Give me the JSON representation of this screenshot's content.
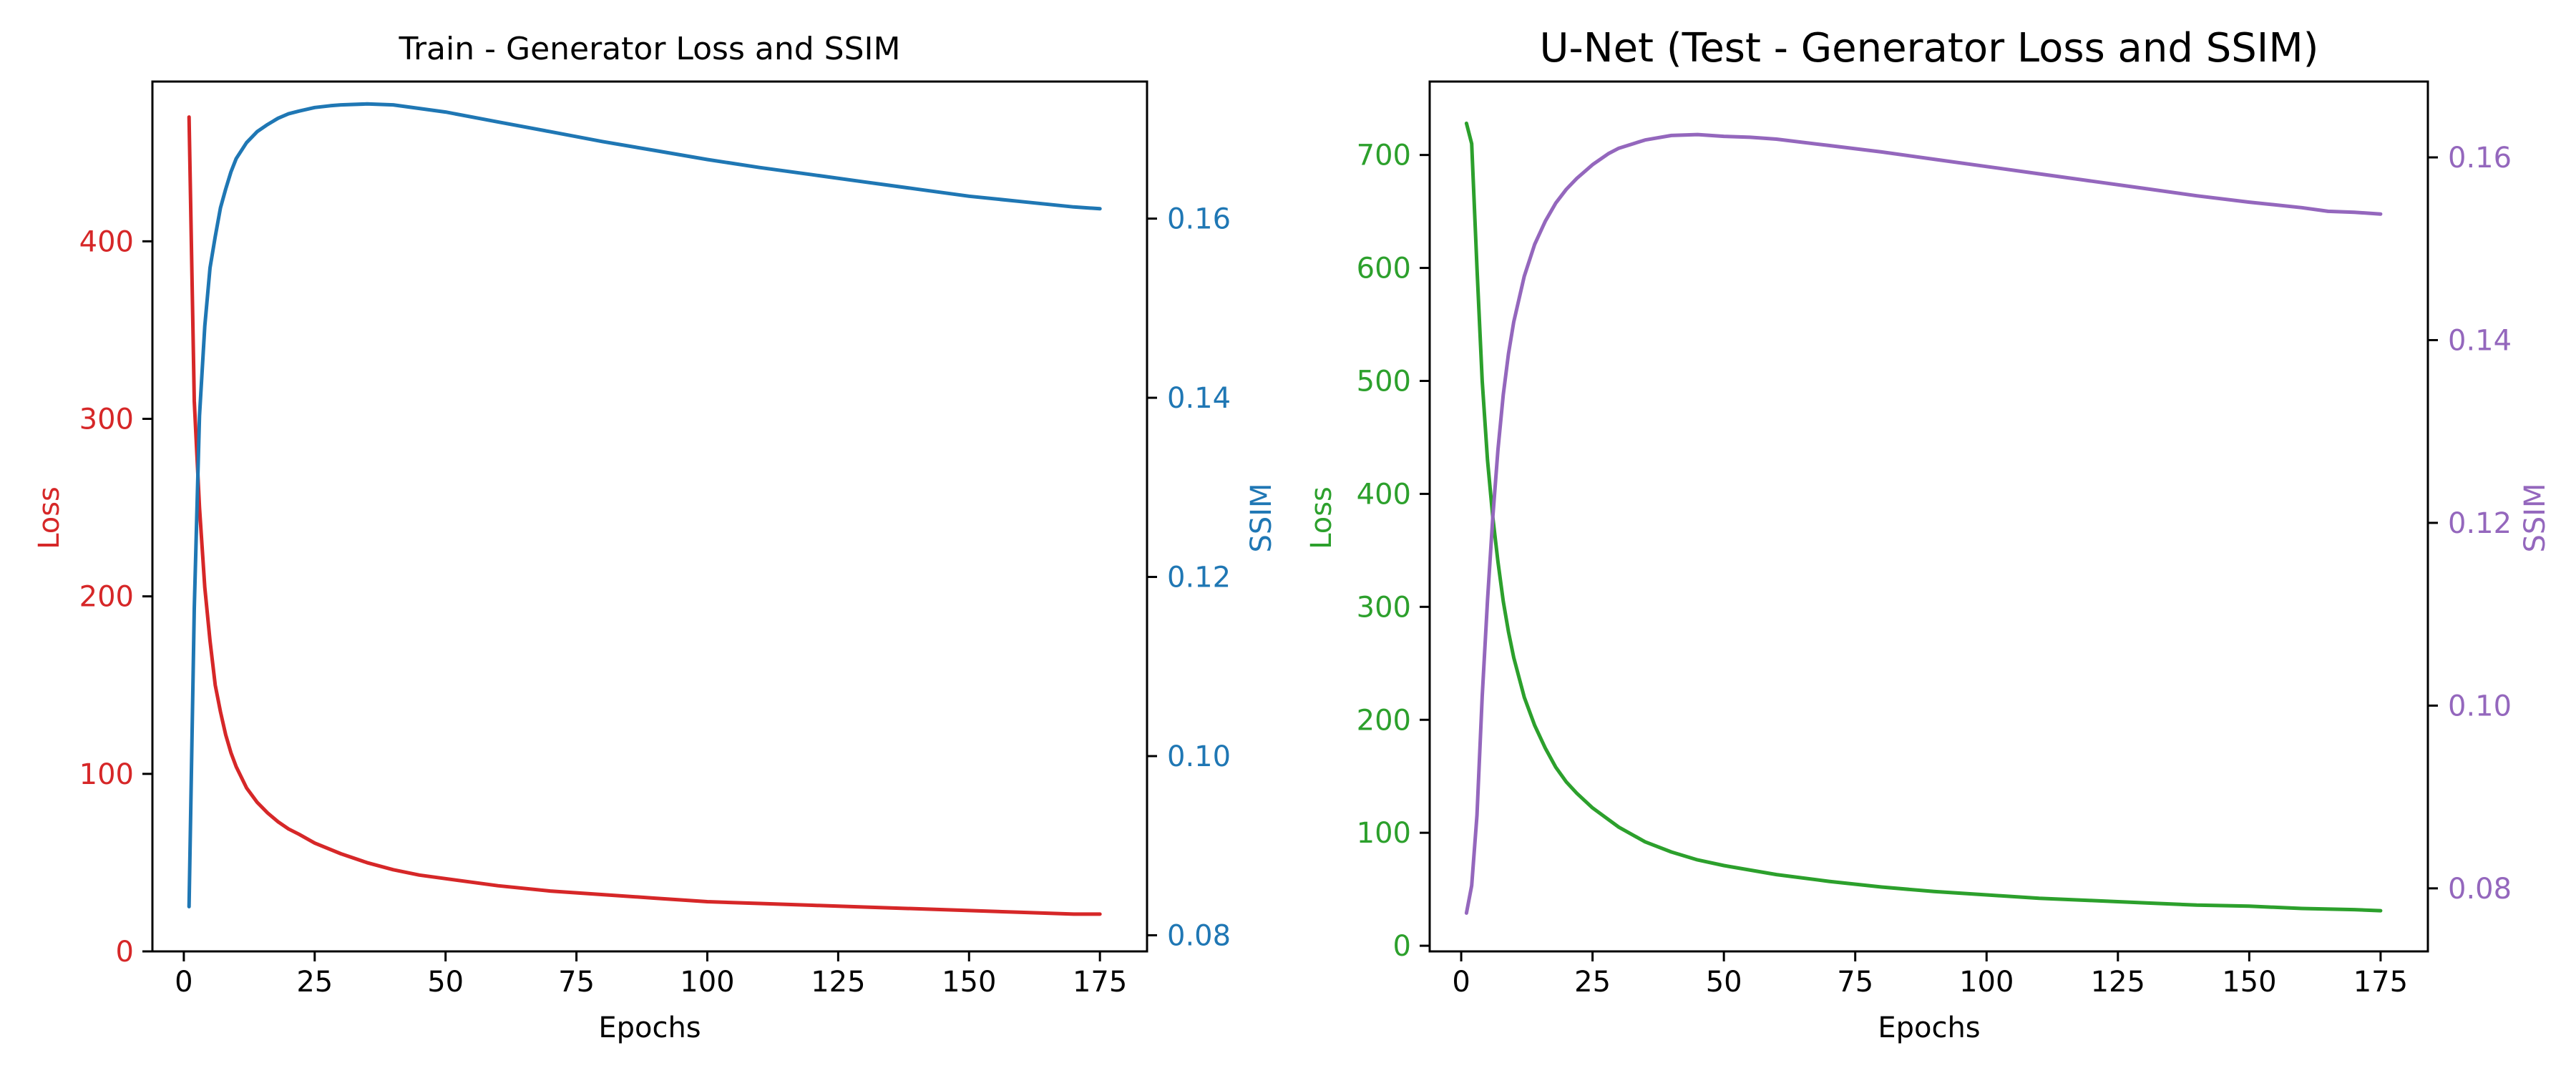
{
  "figure": {
    "background": "#ffffff",
    "axis_color": "#000000"
  },
  "chart_data": [
    {
      "type": "line",
      "title": "Train - Generator Loss and SSIM",
      "xlabel": "Epochs",
      "ylabel_left": "Loss",
      "ylabel_right": "SSIM",
      "xlim": [
        -6,
        184
      ],
      "ylim_left": [
        0,
        490
      ],
      "ylim_right": [
        0.0782,
        0.1753
      ],
      "xticks": [
        0,
        25,
        50,
        75,
        100,
        125,
        150,
        175
      ],
      "yticks_left": [
        0,
        100,
        200,
        300,
        400
      ],
      "yticks_right": [
        0.08,
        0.1,
        0.12,
        0.14,
        0.16
      ],
      "grid": false,
      "left_color": "#d62728",
      "right_color": "#1f77b4",
      "series": [
        {
          "name": "Loss",
          "axis": "left",
          "x": [
            1,
            2,
            3,
            4,
            5,
            6,
            7,
            8,
            9,
            10,
            12,
            14,
            16,
            18,
            20,
            22,
            25,
            30,
            35,
            40,
            45,
            50,
            60,
            70,
            80,
            90,
            100,
            110,
            120,
            130,
            140,
            150,
            160,
            170,
            175
          ],
          "y": [
            470,
            310,
            250,
            205,
            175,
            150,
            135,
            122,
            112,
            104,
            92,
            84,
            78,
            73,
            69,
            66,
            61,
            55,
            50,
            46,
            43,
            41,
            37,
            34,
            32,
            30,
            28,
            27,
            26,
            25,
            24,
            23,
            22,
            21,
            21
          ]
        },
        {
          "name": "SSIM",
          "axis": "right",
          "x": [
            1,
            2,
            3,
            4,
            5,
            6,
            7,
            8,
            9,
            10,
            12,
            14,
            16,
            18,
            20,
            22,
            25,
            28,
            30,
            35,
            40,
            45,
            50,
            60,
            70,
            80,
            90,
            100,
            110,
            120,
            130,
            140,
            150,
            160,
            170,
            175
          ],
          "y": [
            0.0832,
            0.1165,
            0.138,
            0.148,
            0.1545,
            0.158,
            0.1612,
            0.1633,
            0.1652,
            0.1667,
            0.1685,
            0.1697,
            0.1705,
            0.1712,
            0.1717,
            0.172,
            0.1724,
            0.1726,
            0.1727,
            0.1728,
            0.1727,
            0.1723,
            0.1719,
            0.1708,
            0.1697,
            0.1686,
            0.1676,
            0.1666,
            0.1657,
            0.1649,
            0.1641,
            0.1633,
            0.1625,
            0.1619,
            0.1613,
            0.1611
          ]
        }
      ]
    },
    {
      "type": "line",
      "title": "U-Net (Test - Generator Loss and SSIM)",
      "xlabel": "Epochs",
      "ylabel_left": "Loss",
      "ylabel_right": "SSIM",
      "xlim": [
        -6,
        184
      ],
      "ylim_left": [
        -5,
        765
      ],
      "ylim_right": [
        0.0731,
        0.1683
      ],
      "xticks": [
        0,
        25,
        50,
        75,
        100,
        125,
        150,
        175
      ],
      "yticks_left": [
        0,
        100,
        200,
        300,
        400,
        500,
        600,
        700
      ],
      "yticks_right": [
        0.08,
        0.1,
        0.12,
        0.14,
        0.16
      ],
      "grid": false,
      "left_color": "#2ca02c",
      "right_color": "#9467bd",
      "series": [
        {
          "name": "Loss",
          "axis": "left",
          "x": [
            1,
            2,
            3,
            4,
            5,
            6,
            7,
            8,
            9,
            10,
            12,
            14,
            16,
            18,
            20,
            22,
            25,
            30,
            35,
            40,
            45,
            50,
            60,
            70,
            80,
            90,
            100,
            110,
            120,
            130,
            140,
            150,
            160,
            170,
            175
          ],
          "y": [
            728,
            710,
            600,
            500,
            430,
            380,
            340,
            305,
            278,
            255,
            220,
            195,
            175,
            158,
            145,
            135,
            122,
            105,
            92,
            83,
            76,
            71,
            63,
            57,
            52,
            48,
            45,
            42,
            40,
            38,
            36,
            35,
            33,
            32,
            31
          ]
        },
        {
          "name": "SSIM",
          "axis": "right",
          "x": [
            1,
            2,
            3,
            4,
            5,
            6,
            7,
            8,
            9,
            10,
            12,
            14,
            16,
            18,
            20,
            22,
            25,
            28,
            30,
            35,
            40,
            45,
            50,
            55,
            60,
            70,
            80,
            90,
            100,
            110,
            120,
            130,
            140,
            150,
            160,
            165,
            170,
            175
          ],
          "y": [
            0.0773,
            0.0803,
            0.088,
            0.101,
            0.1115,
            0.1205,
            0.128,
            0.134,
            0.1385,
            0.142,
            0.147,
            0.1505,
            0.153,
            0.155,
            0.1565,
            0.1577,
            0.1592,
            0.1604,
            0.161,
            0.1619,
            0.1624,
            0.1625,
            0.1623,
            0.1622,
            0.162,
            0.1613,
            0.1606,
            0.1598,
            0.159,
            0.1582,
            0.1574,
            0.1566,
            0.1558,
            0.1551,
            0.1545,
            0.1541,
            0.154,
            0.1538
          ]
        }
      ]
    }
  ]
}
